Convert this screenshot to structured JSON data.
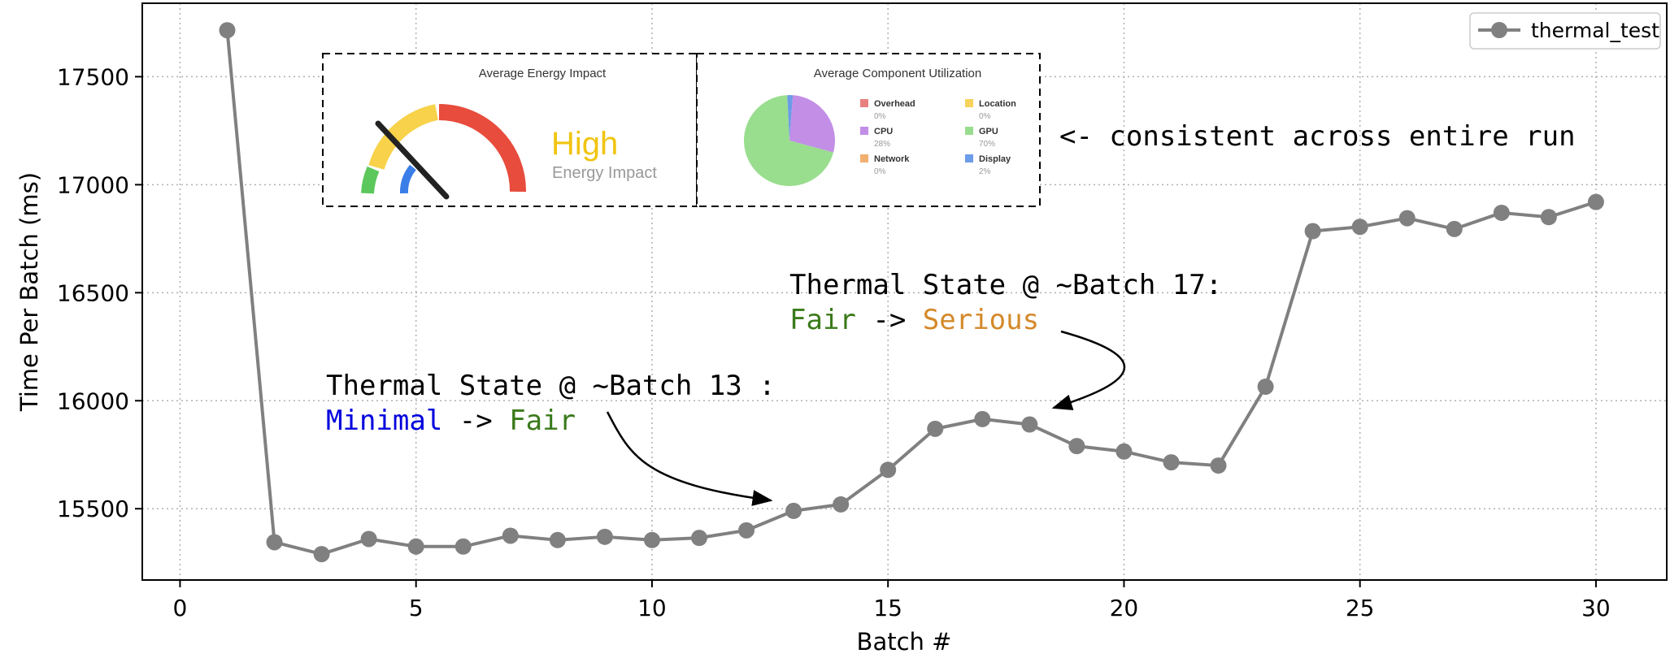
{
  "chart_data": {
    "type": "line",
    "xlabel": "Batch #",
    "ylabel": "Time Per Batch (ms)",
    "xlim": [
      -0.8,
      31.5
    ],
    "ylim": [
      15170,
      17840
    ],
    "x_ticks": [
      0,
      5,
      10,
      15,
      20,
      25,
      30
    ],
    "y_ticks": [
      15500,
      16000,
      16500,
      17000,
      17500
    ],
    "grid": true,
    "legend_position": "top-right",
    "series": [
      {
        "name": "thermal_test",
        "color": "#808080",
        "x": [
          1,
          2,
          3,
          4,
          5,
          6,
          7,
          8,
          9,
          10,
          11,
          12,
          13,
          14,
          15,
          16,
          17,
          18,
          19,
          20,
          21,
          22,
          23,
          24,
          25,
          26,
          27,
          28,
          29,
          30
        ],
        "y": [
          17715,
          15345,
          15290,
          15360,
          15325,
          15325,
          15375,
          15355,
          15370,
          15355,
          15365,
          15400,
          15490,
          15520,
          15680,
          15870,
          15915,
          15890,
          15790,
          15765,
          15715,
          15700,
          16065,
          16785,
          16805,
          16845,
          16795,
          16870,
          16850,
          16920
        ]
      }
    ],
    "annotations": {
      "batch13_title": "Thermal State @ ~Batch 13 :",
      "batch13_from": "Minimal",
      "batch13_arrow": " -> ",
      "batch13_to": "Fair",
      "batch17_title": "Thermal State @ ~Batch 17:",
      "batch17_from": "Fair",
      "batch17_arrow": " -> ",
      "batch17_to": "Serious",
      "consistent_note": "<- consistent across entire run",
      "minimal_color": "#0000dd",
      "fair_color": "#3a7a1a",
      "serious_color": "#d4892a"
    },
    "inset": {
      "energy_title": "Average Energy Impact",
      "energy_level": "High",
      "energy_sub": "Energy Impact",
      "util_title": "Average Component Utilization",
      "components": [
        {
          "name": "Overhead",
          "pct": "0%",
          "value": 0,
          "color": "#e8807f"
        },
        {
          "name": "Location",
          "pct": "0%",
          "value": 0,
          "color": "#f6d35a"
        },
        {
          "name": "CPU",
          "pct": "28%",
          "value": 28,
          "color": "#c28ee6"
        },
        {
          "name": "GPU",
          "pct": "70%",
          "value": 70,
          "color": "#99dd8e"
        },
        {
          "name": "Network",
          "pct": "0%",
          "value": 0,
          "color": "#f1b070"
        },
        {
          "name": "Display",
          "pct": "2%",
          "value": 2,
          "color": "#6d9ce8"
        }
      ]
    }
  }
}
